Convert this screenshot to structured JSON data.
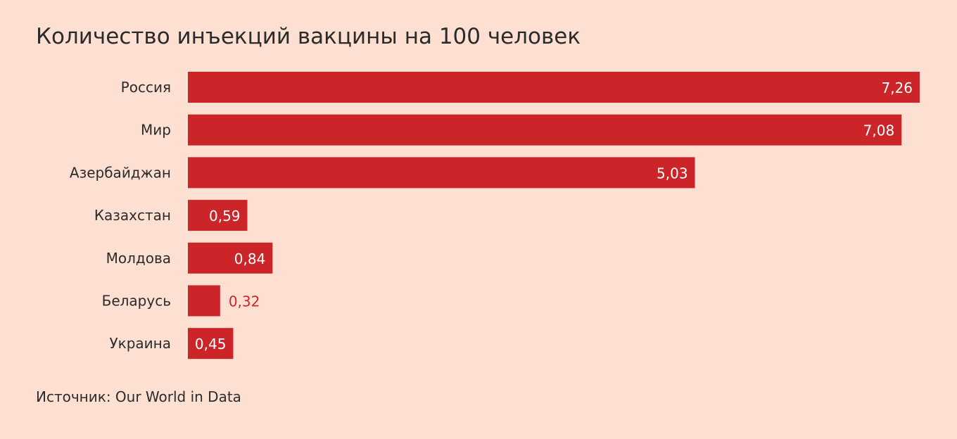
{
  "chart_data": {
    "type": "bar",
    "orientation": "horizontal",
    "title": "Количество инъекций вакцины на 100 человек",
    "source": "Источник: Our World in Data",
    "categories": [
      "Россия",
      "Мир",
      "Азербайджан",
      "Казахстан",
      "Молдова",
      "Беларусь",
      "Украина"
    ],
    "values": [
      7.26,
      7.08,
      5.03,
      0.59,
      0.84,
      0.32,
      0.45
    ],
    "value_labels": [
      "7,26",
      "7,08",
      "5,03",
      "0,59",
      "0,84",
      "0,32",
      "0,45"
    ],
    "xlim": [
      0,
      7.26
    ],
    "grid": false,
    "legend": "none",
    "colors": {
      "background": "#fde0d2",
      "bar": "#cc2529",
      "label_inside": "#ffffff",
      "label_outside": "#cc2529",
      "text": "#2b2b2b"
    }
  }
}
